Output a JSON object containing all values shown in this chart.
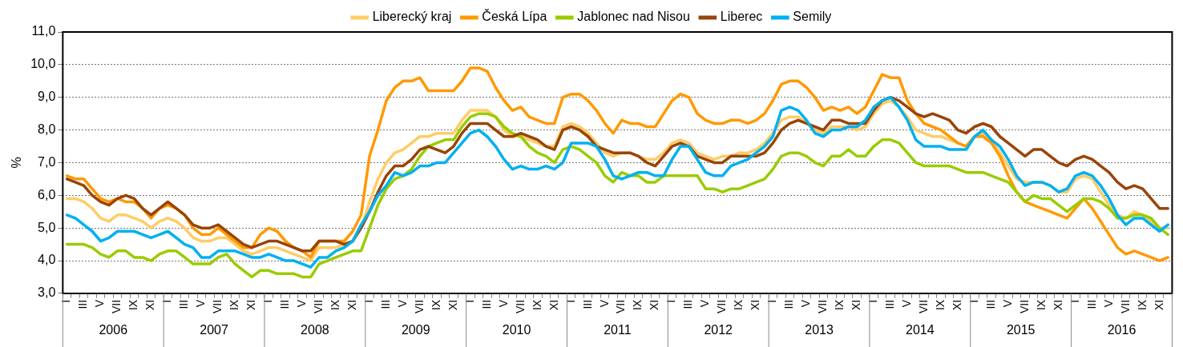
{
  "chart_data": {
    "type": "line",
    "ylabel": "%",
    "legend": "top",
    "grid": "y",
    "ylim": [
      3,
      11
    ],
    "yticks": [
      {
        "value": 3,
        "label": "3,0"
      },
      {
        "value": 4,
        "label": "4,0"
      },
      {
        "value": 5,
        "label": "5,0"
      },
      {
        "value": 6,
        "label": "6,0"
      },
      {
        "value": 7,
        "label": "7,0"
      },
      {
        "value": 8,
        "label": "8,0"
      },
      {
        "value": 9,
        "label": "9,0"
      },
      {
        "value": 10,
        "label": "10,0"
      },
      {
        "value": 11,
        "label": "11,0"
      }
    ],
    "annotations": [
      "2006",
      "2007",
      "2008",
      "2009",
      "2010",
      "2011",
      "2012",
      "2013",
      "2014",
      "2015",
      "2016"
    ],
    "categories": [
      "I",
      null,
      "III",
      null,
      "V",
      null,
      "VII",
      null,
      "IX",
      null,
      "XI",
      null,
      "I",
      null,
      "III",
      null,
      "V",
      null,
      "VII",
      null,
      "IX",
      null,
      "XI",
      null,
      "I",
      null,
      "III",
      null,
      "V",
      null,
      "VII",
      null,
      "IX",
      null,
      "XI",
      null,
      "I",
      null,
      "III",
      null,
      "V",
      null,
      "VII",
      null,
      "IX",
      null,
      "XI",
      null,
      "I",
      null,
      "III",
      null,
      "V",
      null,
      "VII",
      null,
      "IX",
      null,
      "XI",
      null,
      "I",
      null,
      "III",
      null,
      "V",
      null,
      "VII",
      null,
      "IX",
      null,
      "XI",
      null,
      "I",
      null,
      "III",
      null,
      "V",
      null,
      "VII",
      null,
      "IX",
      null,
      "XI",
      null,
      "I",
      null,
      "III",
      null,
      "V",
      null,
      "VII",
      null,
      "IX",
      null,
      "XI",
      null,
      "I",
      null,
      "III",
      null,
      "V",
      null,
      "VII",
      null,
      "IX",
      null,
      "XI",
      null,
      "I",
      null,
      "III",
      null,
      "V",
      null,
      "VII",
      null,
      "IX",
      null,
      "XI",
      null,
      "I",
      null,
      "III",
      null,
      "V",
      null,
      "VII",
      null,
      "IX",
      null,
      "XI",
      null
    ],
    "series": [
      {
        "name": "Liberecký kraj",
        "color": "#ffcc66",
        "values": [
          5.9,
          5.9,
          5.8,
          5.6,
          5.3,
          5.2,
          5.4,
          5.4,
          5.3,
          5.2,
          5.0,
          5.2,
          5.3,
          5.2,
          5.0,
          4.7,
          4.6,
          4.6,
          4.7,
          4.7,
          4.5,
          4.3,
          4.2,
          4.3,
          4.4,
          4.4,
          4.3,
          4.2,
          4.1,
          4.0,
          4.4,
          4.4,
          4.4,
          4.5,
          4.6,
          5.0,
          5.8,
          6.5,
          7.0,
          7.3,
          7.4,
          7.6,
          7.8,
          7.8,
          7.9,
          7.9,
          7.9,
          8.3,
          8.6,
          8.6,
          8.6,
          8.4,
          8.0,
          7.8,
          7.8,
          7.7,
          7.6,
          7.5,
          7.5,
          8.1,
          8.2,
          8.1,
          7.9,
          7.6,
          7.3,
          7.2,
          7.3,
          7.3,
          7.2,
          7.1,
          7.1,
          7.3,
          7.6,
          7.7,
          7.6,
          7.3,
          7.2,
          7.1,
          7.2,
          7.2,
          7.3,
          7.3,
          7.4,
          7.6,
          7.9,
          8.3,
          8.4,
          8.4,
          8.2,
          8.0,
          7.9,
          8.1,
          8.1,
          8.1,
          8.0,
          8.1,
          8.5,
          8.8,
          8.9,
          8.7,
          8.4,
          8.0,
          7.9,
          7.8,
          7.8,
          7.7,
          7.6,
          7.5,
          7.8,
          7.9,
          7.7,
          7.3,
          6.9,
          6.5,
          6.4,
          6.4,
          6.4,
          6.3,
          6.1,
          6.1,
          6.5,
          6.6,
          6.5,
          6.1,
          5.7,
          5.4,
          5.3,
          5.5,
          5.4,
          5.2,
          5.0,
          5.0
        ]
      },
      {
        "name": "Česká Lípa",
        "color": "#ff9900",
        "values": [
          6.6,
          6.5,
          6.5,
          6.2,
          5.9,
          5.8,
          5.9,
          5.8,
          5.8,
          5.6,
          5.3,
          5.6,
          5.7,
          5.6,
          5.4,
          5.0,
          4.8,
          4.8,
          5.0,
          4.8,
          4.6,
          4.4,
          4.4,
          4.8,
          5.0,
          4.9,
          4.6,
          4.4,
          4.3,
          4.1,
          4.6,
          4.6,
          4.6,
          4.6,
          4.9,
          5.4,
          7.2,
          8.0,
          8.9,
          9.3,
          9.5,
          9.5,
          9.6,
          9.2,
          9.2,
          9.2,
          9.2,
          9.5,
          9.9,
          9.9,
          9.8,
          9.3,
          8.9,
          8.6,
          8.7,
          8.4,
          8.3,
          8.2,
          8.2,
          9.0,
          9.1,
          9.1,
          8.9,
          8.6,
          8.2,
          7.9,
          8.3,
          8.2,
          8.2,
          8.1,
          8.1,
          8.5,
          8.9,
          9.1,
          9.0,
          8.5,
          8.3,
          8.2,
          8.2,
          8.3,
          8.3,
          8.2,
          8.3,
          8.5,
          8.9,
          9.4,
          9.5,
          9.5,
          9.3,
          9.0,
          8.6,
          8.7,
          8.6,
          8.7,
          8.5,
          8.7,
          9.2,
          9.7,
          9.6,
          9.6,
          8.9,
          8.5,
          8.2,
          8.1,
          8.0,
          7.8,
          7.6,
          7.5,
          7.8,
          7.8,
          7.6,
          7.2,
          6.6,
          6.1,
          5.8,
          5.7,
          5.6,
          5.5,
          5.4,
          5.3,
          5.6,
          5.9,
          5.6,
          5.2,
          4.8,
          4.4,
          4.2,
          4.3,
          4.2,
          4.1,
          4.0,
          4.1
        ]
      },
      {
        "name": "Jablonec nad Nisou",
        "color": "#99cc00",
        "values": [
          4.5,
          4.5,
          4.5,
          4.4,
          4.2,
          4.1,
          4.3,
          4.3,
          4.1,
          4.1,
          4.0,
          4.2,
          4.3,
          4.3,
          4.1,
          3.9,
          3.9,
          3.9,
          4.1,
          4.2,
          3.9,
          3.7,
          3.5,
          3.7,
          3.7,
          3.6,
          3.6,
          3.6,
          3.5,
          3.5,
          3.9,
          4.0,
          4.1,
          4.2,
          4.3,
          4.3,
          5.0,
          5.7,
          6.2,
          6.5,
          6.6,
          6.8,
          7.2,
          7.5,
          7.6,
          7.7,
          7.7,
          8.1,
          8.4,
          8.5,
          8.5,
          8.4,
          8.1,
          7.9,
          7.8,
          7.5,
          7.3,
          7.2,
          7.0,
          7.4,
          7.5,
          7.4,
          7.2,
          7.0,
          6.6,
          6.4,
          6.7,
          6.6,
          6.6,
          6.4,
          6.4,
          6.6,
          6.6,
          6.6,
          6.6,
          6.6,
          6.2,
          6.2,
          6.1,
          6.2,
          6.2,
          6.3,
          6.4,
          6.5,
          6.8,
          7.2,
          7.3,
          7.3,
          7.2,
          7.0,
          6.9,
          7.2,
          7.2,
          7.4,
          7.2,
          7.2,
          7.5,
          7.7,
          7.7,
          7.6,
          7.3,
          7.0,
          6.9,
          6.9,
          6.9,
          6.9,
          6.8,
          6.7,
          6.7,
          6.7,
          6.6,
          6.5,
          6.4,
          6.1,
          5.8,
          6.0,
          5.9,
          5.9,
          5.7,
          5.5,
          5.7,
          5.9,
          5.9,
          5.8,
          5.6,
          5.3,
          5.3,
          5.4,
          5.4,
          5.3,
          5.0,
          4.8
        ]
      },
      {
        "name": "Liberec",
        "color": "#994409",
        "values": [
          6.5,
          6.4,
          6.3,
          6.0,
          5.8,
          5.7,
          5.9,
          6.0,
          5.9,
          5.6,
          5.4,
          5.6,
          5.8,
          5.6,
          5.4,
          5.1,
          5.0,
          5.0,
          5.1,
          4.9,
          4.7,
          4.5,
          4.4,
          4.5,
          4.6,
          4.6,
          4.5,
          4.4,
          4.3,
          4.3,
          4.6,
          4.6,
          4.6,
          4.5,
          4.6,
          5.0,
          5.5,
          6.1,
          6.6,
          6.9,
          6.9,
          7.1,
          7.4,
          7.5,
          7.4,
          7.3,
          7.5,
          7.9,
          8.2,
          8.2,
          8.2,
          8.0,
          7.8,
          7.8,
          7.9,
          7.8,
          7.7,
          7.5,
          7.4,
          8.0,
          8.1,
          8.0,
          7.8,
          7.5,
          7.4,
          7.3,
          7.3,
          7.3,
          7.2,
          7.0,
          6.9,
          7.2,
          7.5,
          7.6,
          7.5,
          7.2,
          7.1,
          7.0,
          7.0,
          7.2,
          7.2,
          7.2,
          7.2,
          7.3,
          7.6,
          8.0,
          8.2,
          8.3,
          8.2,
          8.1,
          8.0,
          8.3,
          8.3,
          8.2,
          8.2,
          8.2,
          8.6,
          8.9,
          9.0,
          8.9,
          8.7,
          8.5,
          8.4,
          8.5,
          8.4,
          8.3,
          8.0,
          7.9,
          8.1,
          8.2,
          8.1,
          7.8,
          7.6,
          7.4,
          7.2,
          7.4,
          7.4,
          7.2,
          7.0,
          6.9,
          7.1,
          7.2,
          7.1,
          6.9,
          6.7,
          6.4,
          6.2,
          6.3,
          6.2,
          5.9,
          5.6,
          5.6
        ]
      },
      {
        "name": "Semily",
        "color": "#00b0f0",
        "values": [
          5.4,
          5.3,
          5.1,
          4.9,
          4.6,
          4.7,
          4.9,
          4.9,
          4.9,
          4.8,
          4.7,
          4.8,
          4.9,
          4.7,
          4.5,
          4.4,
          4.1,
          4.1,
          4.3,
          4.3,
          4.3,
          4.2,
          4.1,
          4.1,
          4.2,
          4.1,
          4.0,
          4.0,
          3.9,
          3.8,
          4.1,
          4.1,
          4.3,
          4.4,
          4.6,
          5.1,
          5.5,
          6.0,
          6.3,
          6.7,
          6.6,
          6.7,
          6.9,
          6.9,
          7.0,
          7.0,
          7.3,
          7.6,
          7.9,
          8.0,
          7.8,
          7.5,
          7.1,
          6.8,
          6.9,
          6.8,
          6.8,
          6.9,
          6.8,
          7.0,
          7.6,
          7.6,
          7.6,
          7.5,
          7.1,
          6.6,
          6.5,
          6.6,
          6.7,
          6.7,
          6.6,
          6.6,
          7.1,
          7.5,
          7.5,
          7.1,
          6.7,
          6.6,
          6.6,
          6.9,
          7.0,
          7.1,
          7.3,
          7.5,
          7.8,
          8.6,
          8.7,
          8.6,
          8.3,
          7.9,
          7.8,
          8.0,
          8.0,
          8.1,
          8.1,
          8.3,
          8.7,
          8.9,
          9.0,
          8.7,
          8.3,
          7.7,
          7.5,
          7.5,
          7.5,
          7.4,
          7.4,
          7.4,
          7.8,
          8.0,
          7.7,
          7.5,
          7.1,
          6.6,
          6.3,
          6.4,
          6.4,
          6.3,
          6.1,
          6.2,
          6.6,
          6.7,
          6.6,
          6.3,
          5.9,
          5.4,
          5.1,
          5.3,
          5.3,
          5.1,
          4.9,
          5.1
        ]
      }
    ]
  }
}
